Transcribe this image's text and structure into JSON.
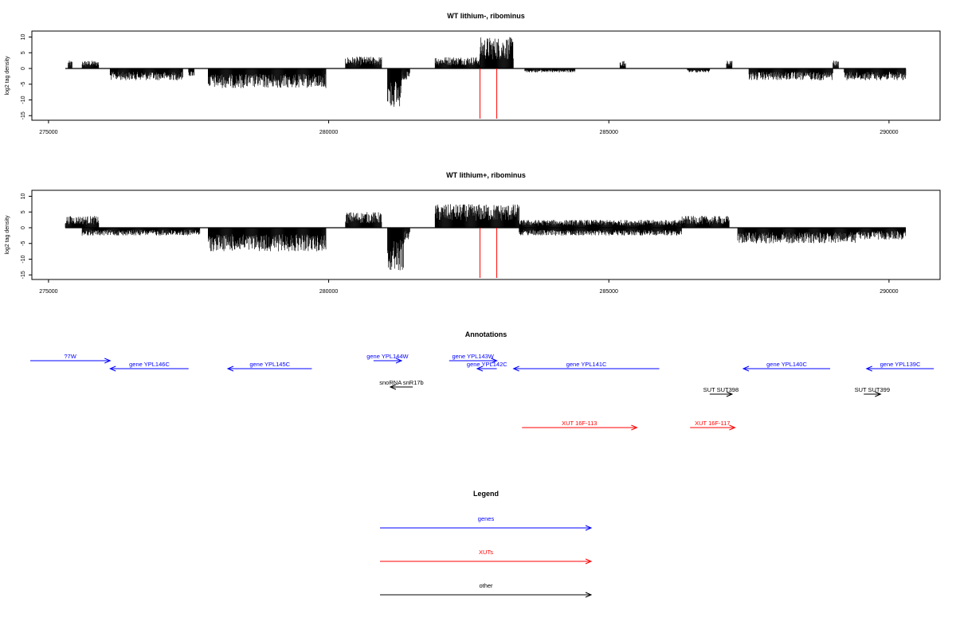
{
  "colors": {
    "genes": "#0000ff",
    "xuts": "#ff0000",
    "other": "#000000",
    "marker": "#ff0000",
    "coverage": "#000000"
  },
  "chart_data": [
    {
      "type": "bar",
      "title": "WT lithium-, ribominus",
      "ylabel": "log2 tag density",
      "xlim": [
        275300,
        290300
      ],
      "ylim": [
        -15,
        12
      ],
      "x_ticks": [
        275000,
        280000,
        285000,
        290000
      ],
      "y_ticks": [
        -15,
        -10,
        -5,
        0,
        5,
        10
      ],
      "markers_x": [
        282700,
        283000
      ],
      "coverage_segments": [
        {
          "x0": 275350,
          "x1": 275420,
          "y": 2
        },
        {
          "x0": 275600,
          "x1": 275900,
          "y": 2
        },
        {
          "x0": 276100,
          "x1": 277400,
          "y": -3
        },
        {
          "x0": 277500,
          "x1": 277600,
          "y": -2
        },
        {
          "x0": 277850,
          "x1": 279950,
          "y": -5
        },
        {
          "x0": 280300,
          "x1": 280950,
          "y": 3
        },
        {
          "x0": 281050,
          "x1": 281300,
          "y": -10
        },
        {
          "x0": 281300,
          "x1": 281450,
          "y": -3
        },
        {
          "x0": 281900,
          "x1": 282700,
          "y": 3
        },
        {
          "x0": 282700,
          "x1": 283300,
          "y": 8
        },
        {
          "x0": 283500,
          "x1": 284400,
          "y": -1
        },
        {
          "x0": 285200,
          "x1": 285300,
          "y": 2
        },
        {
          "x0": 286400,
          "x1": 286800,
          "y": -1
        },
        {
          "x0": 287100,
          "x1": 287200,
          "y": 2
        },
        {
          "x0": 287500,
          "x1": 289000,
          "y": -3
        },
        {
          "x0": 289000,
          "x1": 289100,
          "y": 2
        },
        {
          "x0": 289200,
          "x1": 290300,
          "y": -3
        }
      ]
    },
    {
      "type": "bar",
      "title": "WT lithium+, ribominus",
      "ylabel": "log2 tag density",
      "xlim": [
        275300,
        290300
      ],
      "ylim": [
        -15,
        12
      ],
      "x_ticks": [
        275000,
        280000,
        285000,
        290000
      ],
      "y_ticks": [
        -15,
        -10,
        -5,
        0,
        5,
        10
      ],
      "markers_x": [
        282700,
        283000
      ],
      "coverage_segments": [
        {
          "x0": 275300,
          "x1": 275900,
          "y": 3
        },
        {
          "x0": 275600,
          "x1": 277700,
          "y": -2
        },
        {
          "x0": 277850,
          "x1": 279950,
          "y": -6
        },
        {
          "x0": 280300,
          "x1": 280950,
          "y": 4
        },
        {
          "x0": 281050,
          "x1": 281350,
          "y": -11
        },
        {
          "x0": 281350,
          "x1": 281450,
          "y": -3
        },
        {
          "x0": 281900,
          "x1": 283400,
          "y": 6
        },
        {
          "x0": 283400,
          "x1": 286300,
          "y": 2
        },
        {
          "x0": 283400,
          "x1": 286300,
          "y": -2
        },
        {
          "x0": 286300,
          "x1": 287150,
          "y": 3
        },
        {
          "x0": 287300,
          "x1": 289400,
          "y": -4
        },
        {
          "x0": 289400,
          "x1": 290300,
          "y": -3
        }
      ]
    }
  ],
  "annotations": {
    "title": "Annotations",
    "xlim": [
      275300,
      290300
    ],
    "features": [
      {
        "label": "?7W",
        "x0": 273000,
        "x1": 276100,
        "row": 0,
        "strand": "+",
        "kind": "genes"
      },
      {
        "label": "gene YPL146C",
        "x0": 276100,
        "x1": 277500,
        "row": 1,
        "strand": "-",
        "kind": "genes"
      },
      {
        "label": "gene YPL145C",
        "x0": 278200,
        "x1": 279700,
        "row": 1,
        "strand": "-",
        "kind": "genes"
      },
      {
        "label": "gene YPL144W",
        "x0": 280800,
        "x1": 281300,
        "row": 0,
        "strand": "+",
        "kind": "genes"
      },
      {
        "label": "gene YPL143W",
        "x0": 282150,
        "x1": 283000,
        "row": 0,
        "strand": "+",
        "kind": "genes"
      },
      {
        "label": "gene YPL142C",
        "x0": 282650,
        "x1": 283000,
        "row": 1,
        "strand": "-",
        "kind": "genes"
      },
      {
        "label": "gene YPL141C",
        "x0": 283300,
        "x1": 285900,
        "row": 1,
        "strand": "-",
        "kind": "genes"
      },
      {
        "label": "gene YPL140C",
        "x0": 287400,
        "x1": 288950,
        "row": 1,
        "strand": "-",
        "kind": "genes"
      },
      {
        "label": "gene YPL139C",
        "x0": 289600,
        "x1": 290800,
        "row": 1,
        "strand": "-",
        "kind": "genes"
      },
      {
        "label": "snoRNA snR17b",
        "x0": 281100,
        "x1": 281500,
        "row": 2,
        "strand": "-",
        "kind": "other"
      },
      {
        "label": "SUT SUT398",
        "x0": 286800,
        "x1": 287200,
        "row": 3,
        "strand": "+",
        "kind": "other"
      },
      {
        "label": "SUT SUT399",
        "x0": 289550,
        "x1": 289850,
        "row": 3,
        "strand": "+",
        "kind": "other"
      },
      {
        "label": "XUT 16F-113",
        "x0": 283450,
        "x1": 285500,
        "row": 4,
        "strand": "+",
        "kind": "xuts"
      },
      {
        "label": "XUT 16F-117",
        "x0": 286450,
        "x1": 287250,
        "row": 4,
        "strand": "+",
        "kind": "xuts"
      }
    ]
  },
  "legend": {
    "title": "Legend",
    "items": [
      {
        "label": "genes",
        "kind": "genes"
      },
      {
        "label": "XUTs",
        "kind": "xuts"
      },
      {
        "label": "other",
        "kind": "other"
      }
    ]
  }
}
